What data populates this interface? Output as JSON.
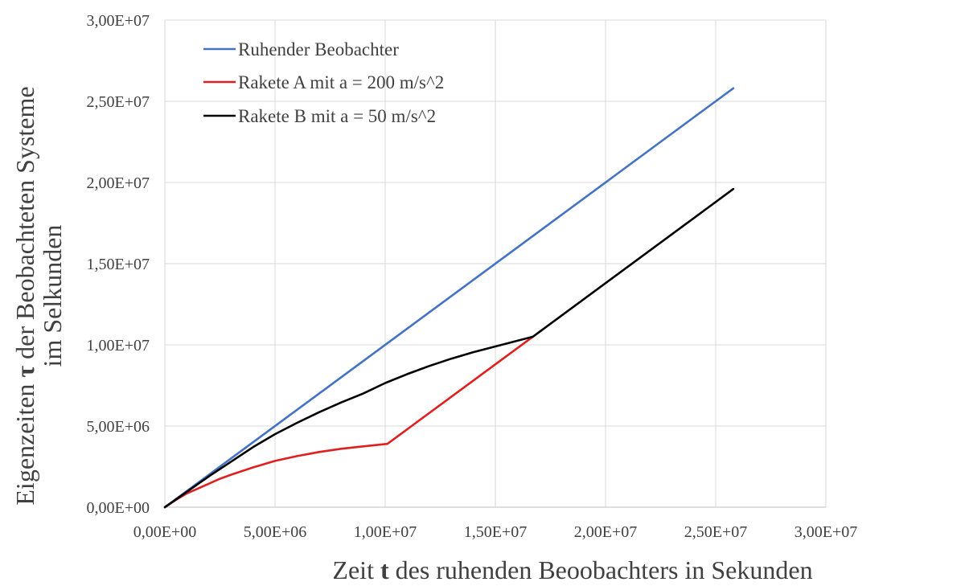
{
  "chart_data": {
    "type": "line",
    "xlabel_parts": [
      "Zeit ",
      "t",
      " des ruhenden Beoobachters in  Sekunden"
    ],
    "ylabel_line1_parts": [
      "Eigenzeiten ",
      "τ",
      " der Beobachteten Systeme"
    ],
    "ylabel_line2": "im Selkunden",
    "xlim": [
      0,
      30000000
    ],
    "ylim": [
      0,
      30000000
    ],
    "x_ticks": [
      0,
      5000000,
      10000000,
      15000000,
      20000000,
      25000000,
      30000000
    ],
    "y_ticks": [
      0,
      5000000,
      10000000,
      15000000,
      20000000,
      25000000,
      30000000
    ],
    "x_tick_labels": [
      "0,00E+00",
      "5,00E+06",
      "1,00E+07",
      "1,50E+07",
      "2,00E+07",
      "2,50E+07",
      "3,00E+07"
    ],
    "y_tick_labels": [
      "0,00E+00",
      "5,00E+06",
      "1,00E+07",
      "1,50E+07",
      "2,00E+07",
      "2,50E+07",
      "3,00E+07"
    ],
    "grid": true,
    "legend_position": "top-left",
    "series": [
      {
        "name": "Ruhender Beobachter",
        "color": "#4472c4",
        "x": [
          0,
          25800000
        ],
        "y": [
          0,
          25800000
        ]
      },
      {
        "name": "Rakete A mit a = 200 m/s^2",
        "color": "#e02020",
        "x": [
          0,
          500000,
          1000000,
          1500000,
          2000000,
          2500000,
          3000000,
          4000000,
          5000000,
          6000000,
          7000000,
          8000000,
          9000000,
          10100000,
          16700000
        ],
        "y": [
          0,
          450000,
          850000,
          1150000,
          1450000,
          1750000,
          2000000,
          2450000,
          2850000,
          3150000,
          3400000,
          3600000,
          3750000,
          3900000,
          10500000
        ]
      },
      {
        "name": "Rakete B mit a = 50 m/s^2",
        "color": "#000000",
        "x": [
          0,
          1000000,
          2000000,
          3000000,
          4000000,
          5000000,
          6000000,
          7000000,
          8000000,
          9000000,
          10000000,
          11000000,
          12000000,
          13000000,
          14000000,
          15000000,
          16700000,
          25800000
        ],
        "y": [
          0,
          950000,
          1900000,
          2800000,
          3700000,
          4500000,
          5200000,
          5850000,
          6450000,
          7000000,
          7650000,
          8200000,
          8700000,
          9150000,
          9550000,
          9900000,
          10500000,
          19600000
        ]
      }
    ]
  }
}
